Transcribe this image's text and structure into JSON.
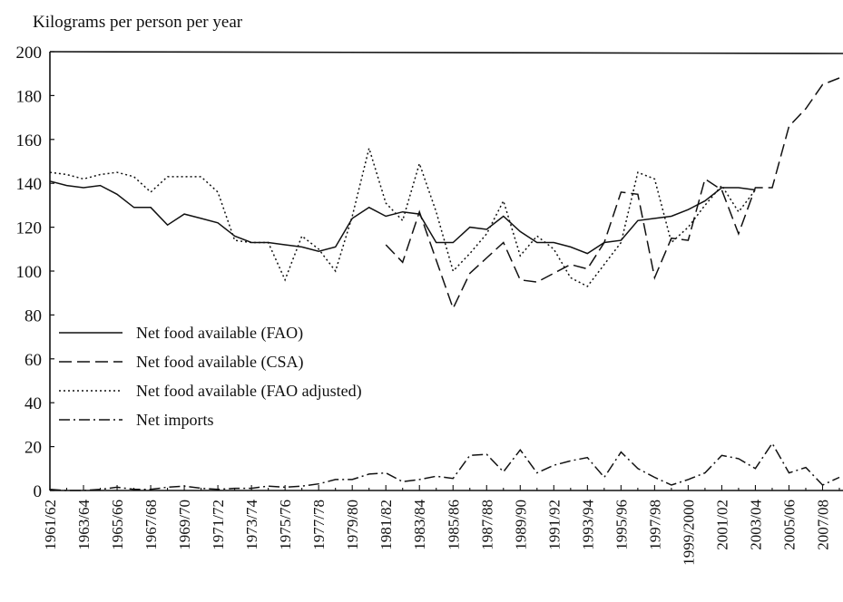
{
  "chart_data": {
    "type": "line",
    "ylabel": "Kilograms per person per year",
    "categories": [
      "1961/62",
      null,
      "1963/64",
      null,
      "1965/66",
      null,
      "1967/68",
      null,
      "1969/70",
      null,
      "1971/72",
      null,
      "1973/74",
      null,
      "1975/76",
      null,
      "1977/78",
      null,
      "1979/80",
      null,
      "1981/82",
      null,
      "1983/84",
      null,
      "1985/86",
      null,
      "1987/88",
      null,
      "1989/90",
      null,
      "1991/92",
      null,
      "1993/94",
      null,
      "1995/96",
      null,
      "1997/98",
      null,
      "1999/2000",
      null,
      "2001/02",
      null,
      "2003/04",
      null,
      "2005/06",
      null,
      "2007/08",
      null
    ],
    "ylim": [
      0,
      200
    ],
    "yticks": [
      0,
      20,
      40,
      60,
      80,
      100,
      120,
      140,
      160,
      180,
      200
    ],
    "legend": "center-left",
    "series": [
      {
        "name": "Net food available (FAO)",
        "color": "#111111",
        "dash": "solid",
        "values": [
          141,
          139,
          138,
          139,
          135,
          129,
          129,
          121,
          126,
          124,
          122,
          116,
          113,
          113,
          112,
          111,
          109,
          111,
          124,
          129,
          125,
          127,
          126,
          113,
          113,
          120,
          119,
          125,
          118,
          113,
          113,
          111,
          108,
          113,
          114,
          123,
          124,
          125,
          128,
          132,
          138,
          138,
          137,
          null,
          null,
          null,
          null,
          null
        ]
      },
      {
        "name": "Net food available (CSA)",
        "color": "#111111",
        "dash": "dashed",
        "values": [
          null,
          null,
          null,
          null,
          null,
          null,
          null,
          null,
          null,
          null,
          null,
          null,
          null,
          null,
          null,
          null,
          null,
          null,
          null,
          null,
          112,
          104,
          127,
          105,
          83,
          99,
          106,
          113,
          96,
          95,
          99,
          103,
          101,
          113,
          136,
          135,
          97,
          115,
          114,
          142,
          137,
          117,
          138,
          138,
          166,
          174,
          185,
          188
        ]
      },
      {
        "name": "Net food available (FAO adjusted)",
        "color": "#111111",
        "dash": "dotted",
        "values": [
          145,
          144,
          142,
          144,
          145,
          143,
          136,
          143,
          143,
          143,
          136,
          114,
          113,
          113,
          96,
          116,
          110,
          100,
          125,
          156,
          131,
          123,
          149,
          127,
          100,
          108,
          117,
          132,
          107,
          116,
          110,
          97,
          93,
          103,
          113,
          145,
          142,
          113,
          120,
          130,
          139,
          127,
          137,
          null,
          null,
          null,
          null,
          null
        ]
      },
      {
        "name": "Net imports",
        "color": "#111111",
        "dash": "dashdot",
        "values": [
          0.5,
          0,
          0,
          0.5,
          1.5,
          0.5,
          0.5,
          1.5,
          2,
          1,
          0.5,
          1,
          1,
          2,
          1.5,
          2,
          3,
          5,
          5,
          7.5,
          8,
          4,
          5,
          6.5,
          5.5,
          16,
          16.5,
          8.5,
          18.5,
          8,
          11.5,
          13.5,
          15,
          6,
          17.5,
          10,
          6,
          2.5,
          5,
          8,
          16,
          14.5,
          10,
          21.5,
          8,
          10.5,
          2.5,
          6
        ]
      }
    ]
  }
}
